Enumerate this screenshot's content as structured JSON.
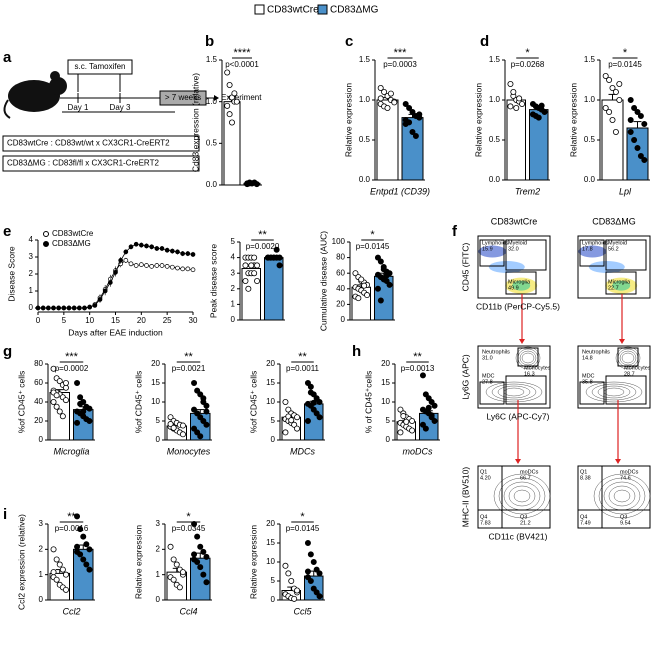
{
  "figure": {
    "legend": [
      "CD83wtCre",
      "CD83ΔMG"
    ],
    "letters": [
      "a",
      "b",
      "c",
      "d",
      "e",
      "f",
      "g",
      "h",
      "i"
    ],
    "scheme": {
      "injection": "s.c. Tamoxifen",
      "days": [
        "Day 1",
        "Day 3"
      ],
      "wait": "> 7 weeks",
      "end": "Experiment",
      "genotypes": [
        "CD83wtCre : CD83wt/wt x CX3CR1-CreERT2",
        "CD83ΔMG : CD83fl/fl x CX3CR1-CreERT2"
      ]
    },
    "facs": {
      "columns": [
        "CD83wtCre",
        "CD83ΔMG"
      ],
      "rows": [
        {
          "ylabel": "CD45 (FITC)",
          "xlabel": "CD11b (PerCP-Cy5.5)",
          "gates": [
            [
              [
                "Lymphoids",
                "15.9"
              ],
              [
                "Myeloid",
                "32.0"
              ],
              [
                "Microglia",
                "49.9"
              ]
            ],
            [
              [
                "Lymphoids",
                "17.8"
              ],
              [
                "Myeloid",
                "56.2"
              ],
              [
                "Microglia",
                "22.7"
              ]
            ]
          ]
        },
        {
          "ylabel": "Ly6G (APC)",
          "xlabel": "Ly6C (APC-Cy7)",
          "gates": [
            [
              [
                "Neutrophils",
                "31.0"
              ],
              [
                "Monocytes",
                "16.3"
              ],
              [
                "MDC",
                "27.8"
              ]
            ],
            [
              [
                "Neutrophils",
                "14.8"
              ],
              [
                "Monocytes",
                "28.7"
              ],
              [
                "MDC",
                "35.8"
              ]
            ]
          ]
        },
        {
          "ylabel": "MHC-II (BV510)",
          "xlabel": "CD11c (BV421)",
          "gates": [
            [
              [
                "Q1",
                "4.20"
              ],
              [
                "moDCs",
                "66.7"
              ],
              [
                "Q4",
                "7.83"
              ],
              [
                "Q3",
                "21.2"
              ]
            ],
            [
              [
                "Q1",
                "8.38"
              ],
              [
                "moDCs",
                "74.6"
              ],
              [
                "Q4",
                "7.49"
              ],
              [
                "Q3",
                "9.54"
              ]
            ]
          ]
        }
      ]
    }
  },
  "chart_data": [
    {
      "type": "bar",
      "ylabel": "Cd83 expression (relative)",
      "ylim": [
        0,
        1.5
      ],
      "yticks": [
        {
          "value": 0,
          "label": "0.0"
        },
        0.5,
        {
          "value": 1,
          "label": "1.0"
        },
        1.5
      ],
      "values": [
        1.0,
        0.02
      ],
      "errors": [
        0.06,
        0.01
      ],
      "colors": [
        "#ffffff",
        "#4a90c9"
      ],
      "points": [
        [
          1.35,
          1.2,
          1.05,
          1.0,
          1.0,
          0.95,
          0.85,
          0.75,
          1.1
        ],
        [
          0.01,
          0.02,
          0.02,
          0.03,
          0.01,
          0.02,
          0.03,
          0.02
        ]
      ],
      "stars": "****",
      "p": "p<0.0001"
    },
    {
      "type": "bar",
      "ylabel": "Relative expression",
      "xlabel": "Entpd1 (CD39)",
      "ylim": [
        0,
        1.5
      ],
      "yticks": [
        {
          "value": 0,
          "label": "0.0"
        },
        0.5,
        {
          "value": 1,
          "label": "1.0"
        },
        1.5
      ],
      "values": [
        1.0,
        0.78
      ],
      "errors": [
        0.03,
        0.04
      ],
      "colors": [
        "#ffffff",
        "#4a90c9"
      ],
      "points": [
        [
          1.15,
          1.1,
          1.05,
          1.0,
          0.98,
          0.95,
          0.92,
          0.9,
          1.08,
          0.97,
          1.02
        ],
        [
          0.95,
          0.9,
          0.85,
          0.8,
          0.78,
          0.75,
          0.72,
          0.6,
          0.55,
          0.82,
          0.7
        ]
      ],
      "stars": "***",
      "p": "p=0.0003"
    },
    {
      "type": "bar",
      "ylabel": "Relative expression",
      "xlabel": "Trem2",
      "ylim": [
        0,
        1.5
      ],
      "yticks": [
        {
          "value": 0,
          "label": "0.0"
        },
        0.5,
        {
          "value": 1,
          "label": "1.0"
        },
        1.5
      ],
      "values": [
        1.0,
        0.88
      ],
      "errors": [
        0.03,
        0.02
      ],
      "colors": [
        "#ffffff",
        "#4a90c9"
      ],
      "points": [
        [
          1.2,
          1.05,
          1.0,
          0.98,
          0.95,
          0.92,
          1.1,
          0.9,
          1.02
        ],
        [
          0.95,
          0.92,
          0.9,
          0.88,
          0.85,
          0.82,
          0.8,
          0.78,
          0.93
        ]
      ],
      "stars": "*",
      "p": "p=0.0268"
    },
    {
      "type": "bar",
      "ylabel": "Relative expression",
      "xlabel": "Lpl",
      "ylim": [
        0,
        1.5
      ],
      "yticks": [
        {
          "value": 0,
          "label": "0.0"
        },
        0.5,
        {
          "value": 1,
          "label": "1.0"
        },
        1.5
      ],
      "values": [
        1.0,
        0.65
      ],
      "errors": [
        0.07,
        0.08
      ],
      "colors": [
        "#ffffff",
        "#4a90c9"
      ],
      "points": [
        [
          1.3,
          1.25,
          1.15,
          1.1,
          1.0,
          0.9,
          0.85,
          0.75,
          0.6,
          1.2
        ],
        [
          1.0,
          0.9,
          0.85,
          0.8,
          0.7,
          0.6,
          0.5,
          0.4,
          0.3,
          0.25,
          0.75
        ]
      ],
      "stars": "*",
      "p": "p=0.0145"
    },
    {
      "type": "line",
      "ylabel": "Disease Score",
      "xlabel": "Days after EAE induction",
      "x": [
        0,
        1,
        2,
        3,
        4,
        5,
        6,
        7,
        8,
        9,
        10,
        11,
        12,
        13,
        14,
        15,
        16,
        17,
        18,
        19,
        20,
        21,
        22,
        23,
        24,
        25,
        26,
        27,
        28,
        29,
        30
      ],
      "xlim": [
        0,
        30
      ],
      "xticks": [
        0,
        5,
        10,
        15,
        20,
        25,
        30
      ],
      "ylim": [
        0,
        4
      ],
      "yticks": [
        0,
        1,
        2,
        3,
        4
      ],
      "series": [
        {
          "name": "CD83wtCre",
          "values": [
            0,
            0,
            0,
            0,
            0,
            0,
            0,
            0,
            0,
            0,
            0.05,
            0.2,
            0.6,
            1.1,
            1.7,
            2.2,
            2.6,
            2.8,
            2.6,
            2.5,
            2.55,
            2.5,
            2.45,
            2.5,
            2.5,
            2.45,
            2.4,
            2.35,
            2.3,
            2.3,
            2.25
          ],
          "errors": [
            0,
            0,
            0,
            0,
            0,
            0,
            0,
            0,
            0,
            0,
            0.03,
            0.1,
            0.2,
            0.25,
            0.25,
            0.25,
            0.2,
            0.15,
            0.15,
            0.12,
            0.12,
            0.12,
            0.12,
            0.12,
            0.12,
            0.12,
            0.12,
            0.12,
            0.12,
            0.12,
            0.12
          ]
        },
        {
          "name": "CD83ΔMG",
          "values": [
            0,
            0,
            0,
            0,
            0,
            0,
            0,
            0,
            0,
            0,
            0.05,
            0.15,
            0.5,
            1.0,
            1.5,
            2.1,
            2.8,
            3.3,
            3.6,
            3.75,
            3.7,
            3.65,
            3.6,
            3.5,
            3.5,
            3.4,
            3.35,
            3.3,
            3.2,
            3.2,
            3.15
          ],
          "errors": [
            0,
            0,
            0,
            0,
            0,
            0,
            0,
            0,
            0,
            0,
            0.03,
            0.1,
            0.2,
            0.25,
            0.25,
            0.25,
            0.2,
            0.15,
            0.15,
            0.12,
            0.15,
            0.15,
            0.15,
            0.15,
            0.15,
            0.15,
            0.15,
            0.15,
            0.15,
            0.15,
            0.15
          ]
        }
      ]
    },
    {
      "type": "bar",
      "ylabel": "Peak disease score",
      "ylim": [
        0,
        5
      ],
      "yticks": [
        0,
        1,
        2,
        3,
        4,
        5
      ],
      "values": [
        3.3,
        4.0
      ],
      "errors": [
        0.15,
        0.05
      ],
      "colors": [
        "#ffffff",
        "#4a90c9"
      ],
      "points": [
        [
          4,
          4,
          4,
          3.5,
          3.5,
          3.5,
          3,
          3,
          3,
          2.5,
          2.5,
          2,
          3.5,
          4
        ],
        [
          4,
          4,
          4,
          4,
          4,
          4,
          4,
          4,
          4,
          4,
          4,
          4,
          4,
          4.5,
          3.5
        ]
      ],
      "stars": "**",
      "p": "p=0.0020"
    },
    {
      "type": "bar",
      "ylabel": "Cumulative disease (AUC)",
      "ylim": [
        0,
        100
      ],
      "yticks": [
        0,
        20,
        40,
        60,
        80,
        100
      ],
      "values": [
        42,
        56
      ],
      "errors": [
        3,
        4
      ],
      "colors": [
        "#ffffff",
        "#4a90c9"
      ],
      "points": [
        [
          60,
          55,
          50,
          48,
          45,
          42,
          40,
          38,
          35,
          32,
          30,
          28,
          52,
          44
        ],
        [
          80,
          75,
          68,
          62,
          60,
          58,
          55,
          52,
          50,
          45,
          40,
          25,
          65,
          57
        ]
      ],
      "stars": "*",
      "p": "p=0.0145"
    },
    {
      "type": "bar",
      "ylabel": "%of CD45⁺ cells",
      "xlabel": "Microglia",
      "ylim": [
        0,
        80
      ],
      "yticks": [
        0,
        20,
        40,
        60,
        80
      ],
      "values": [
        50,
        32
      ],
      "errors": [
        3,
        3
      ],
      "colors": [
        "#ffffff",
        "#4a90c9"
      ],
      "points": [
        [
          75,
          65,
          62,
          58,
          55,
          52,
          50,
          48,
          45,
          42,
          40,
          35,
          30,
          25,
          60,
          50,
          47
        ],
        [
          60,
          45,
          40,
          35,
          33,
          30,
          28,
          25,
          22,
          20,
          18,
          38,
          30
        ]
      ],
      "stars": "***",
      "p": "p=0.0002"
    },
    {
      "type": "bar",
      "ylabel": "%of CD45⁺ cells",
      "xlabel": "Monocytes",
      "ylim": [
        0,
        20
      ],
      "yticks": [
        0,
        5,
        10,
        15,
        20
      ],
      "values": [
        3.7,
        7.0
      ],
      "errors": [
        0.4,
        1.0
      ],
      "colors": [
        "#ffffff",
        "#4a90c9"
      ],
      "points": [
        [
          6,
          5,
          4.5,
          4,
          3.8,
          3.5,
          3,
          2.5,
          2,
          1.5,
          4.2,
          3.2
        ],
        [
          15,
          13,
          12,
          10,
          9,
          8,
          7,
          6,
          5,
          4,
          3,
          2,
          1,
          11,
          7.5
        ]
      ],
      "stars": "**",
      "p": "p=0.0021"
    },
    {
      "type": "bar",
      "ylabel": "%of CD45⁺ cells",
      "xlabel": "MDCs",
      "ylim": [
        0,
        20
      ],
      "yticks": [
        0,
        5,
        10,
        15,
        20
      ],
      "values": [
        6,
        9.5
      ],
      "errors": [
        0.6,
        0.7
      ],
      "colors": [
        "#ffffff",
        "#4a90c9"
      ],
      "points": [
        [
          10,
          8,
          7,
          6.5,
          6,
          5.5,
          5,
          4.5,
          4,
          3,
          2,
          6.2,
          5.2
        ],
        [
          15,
          14,
          12,
          11,
          10,
          9.5,
          9,
          8,
          7,
          6,
          5,
          12.5,
          9.8
        ]
      ],
      "stars": "**",
      "p": "p=0.0011"
    },
    {
      "type": "bar",
      "ylabel": "% of CD45⁺cells",
      "xlabel": "moDCs",
      "ylim": [
        0,
        20
      ],
      "yticks": [
        0,
        5,
        10,
        15,
        20
      ],
      "values": [
        4.8,
        7.0
      ],
      "errors": [
        0.4,
        0.7
      ],
      "colors": [
        "#ffffff",
        "#4a90c9"
      ],
      "points": [
        [
          8,
          7,
          6,
          5.5,
          5,
          4.5,
          4,
          3.5,
          3,
          2.5,
          2,
          6.3,
          4.8
        ],
        [
          17,
          12,
          11,
          10,
          9,
          8,
          7.5,
          7,
          6,
          5,
          4,
          3,
          8.5,
          6.5
        ]
      ],
      "stars": "**",
      "p": "p=0.0013"
    },
    {
      "type": "bar",
      "ylabel": "Ccl2 expression (relative)",
      "xlabel": "Ccl2",
      "ylim": [
        0,
        3
      ],
      "yticks": [
        0,
        1,
        2,
        3
      ],
      "values": [
        1.05,
        2.0
      ],
      "errors": [
        0.15,
        0.17
      ],
      "colors": [
        "#ffffff",
        "#4a90c9"
      ],
      "points": [
        [
          2.0,
          1.6,
          1.4,
          1.2,
          1.0,
          0.9,
          0.8,
          0.6,
          0.5,
          0.4,
          1.1
        ],
        [
          3.3,
          2.8,
          2.5,
          2.2,
          2.0,
          1.9,
          1.8,
          1.6,
          1.4,
          1.2,
          2.1
        ]
      ],
      "stars": "**",
      "p": "p=0.0016"
    },
    {
      "type": "bar",
      "ylabel": "Relative expression",
      "xlabel": "Ccl4",
      "ylim": [
        0,
        3
      ],
      "yticks": [
        0,
        1,
        2,
        3
      ],
      "values": [
        1.1,
        1.65
      ],
      "errors": [
        0.15,
        0.2
      ],
      "colors": [
        "#ffffff",
        "#4a90c9"
      ],
      "points": [
        [
          2.1,
          1.6,
          1.4,
          1.2,
          1.0,
          0.9,
          0.8,
          0.6,
          0.5,
          1.1
        ],
        [
          3.0,
          2.5,
          2.1,
          1.9,
          1.7,
          1.6,
          1.5,
          1.3,
          1.0,
          0.7,
          1.8
        ]
      ],
      "stars": "*",
      "p": "p=0.0345"
    },
    {
      "type": "bar",
      "ylabel": "Relative expression",
      "xlabel": "Ccl5",
      "ylim": [
        0,
        20
      ],
      "yticks": [
        0,
        5,
        10,
        15,
        20
      ],
      "values": [
        2.5,
        6.3
      ],
      "errors": [
        0.9,
        1.3
      ],
      "colors": [
        "#ffffff",
        "#4a90c9"
      ],
      "points": [
        [
          9,
          7,
          5,
          3,
          2,
          1.5,
          1,
          0.5,
          0.3,
          2.5
        ],
        [
          15,
          12,
          10,
          8,
          7,
          6,
          5,
          3,
          2,
          1,
          7.5
        ]
      ],
      "stars": "*",
      "p": "p=0.0145"
    }
  ]
}
